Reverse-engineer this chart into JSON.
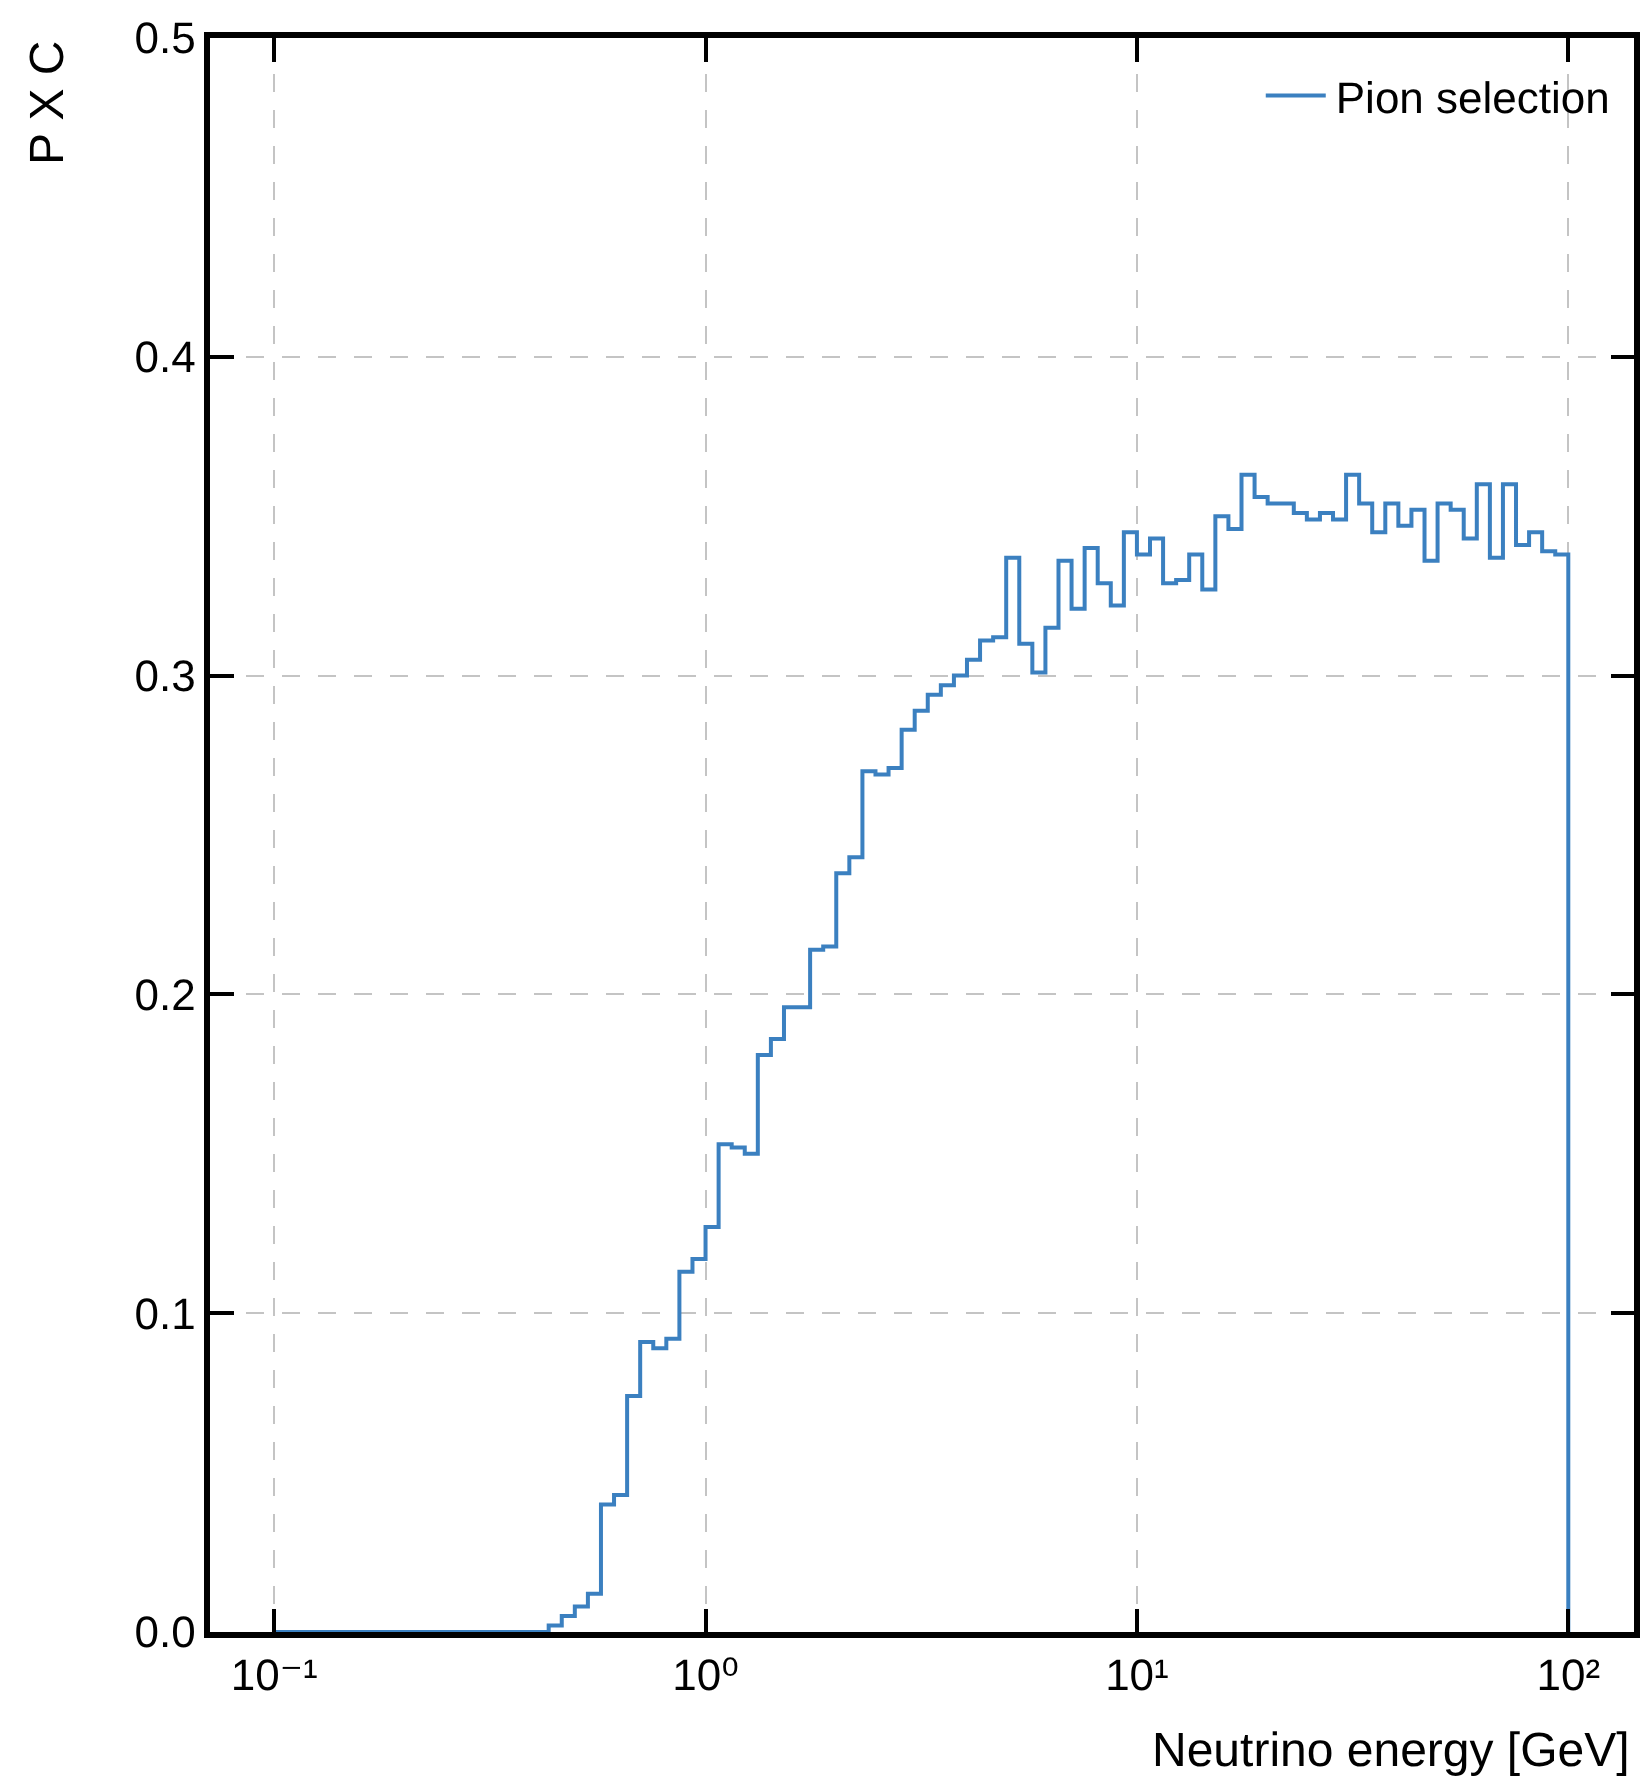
{
  "chart_data": {
    "type": "histogram",
    "xlabel": "Neutrino energy [GeV]",
    "ylabel": "P X C",
    "bins": [
      0.1,
      0.10723,
      0.11498,
      0.12328,
      0.13219,
      0.14174,
      0.15199,
      0.16297,
      0.17475,
      0.18738,
      0.20092,
      0.21544,
      0.23102,
      0.24771,
      0.26561,
      0.28481,
      0.30539,
      0.32745,
      0.35112,
      0.3765,
      0.4037,
      0.43287,
      0.46416,
      0.4977,
      0.53367,
      0.57224,
      0.61359,
      0.65793,
      0.70547,
      0.75647,
      0.81113,
      0.86975,
      0.93261,
      1,
      1.0723,
      1.1498,
      1.2328,
      1.3219,
      1.4174,
      1.5199,
      1.6297,
      1.7475,
      1.8738,
      2.0092,
      2.1544,
      2.3102,
      2.4771,
      2.6561,
      2.8481,
      3.0539,
      3.2745,
      3.5112,
      3.765,
      4.037,
      4.3287,
      4.6416,
      4.977,
      5.3367,
      5.7224,
      6.1359,
      6.5793,
      7.0547,
      7.5647,
      8.1113,
      8.6975,
      9.3261,
      10,
      10.723,
      11.498,
      12.328,
      13.219,
      14.174,
      15.199,
      16.297,
      17.475,
      18.738,
      20.092,
      21.544,
      23.102,
      24.771,
      26.561,
      28.481,
      30.539,
      32.745,
      35.112,
      37.65,
      40.37,
      43.287,
      46.416,
      49.77,
      53.367,
      57.224,
      61.359,
      65.793,
      70.547,
      75.647,
      81.113,
      86.975,
      93.261,
      100
    ],
    "series": [
      {
        "name": "Pion selection",
        "color": "#3b80c0",
        "values": [
          0,
          0,
          0,
          0,
          0,
          0,
          0,
          0,
          0,
          0,
          0,
          0,
          0,
          0,
          0,
          0,
          0,
          0,
          0,
          0,
          0,
          0.002,
          0.005,
          0.008,
          0.012,
          0.04,
          0.043,
          0.074,
          0.091,
          0.089,
          0.092,
          0.113,
          0.117,
          0.127,
          0.153,
          0.152,
          0.15,
          0.181,
          0.186,
          0.196,
          0.196,
          0.214,
          0.215,
          0.238,
          0.243,
          0.27,
          0.269,
          0.271,
          0.283,
          0.289,
          0.294,
          0.297,
          0.3,
          0.305,
          0.311,
          0.312,
          0.337,
          0.31,
          0.301,
          0.315,
          0.336,
          0.321,
          0.34,
          0.329,
          0.322,
          0.345,
          0.338,
          0.343,
          0.329,
          0.33,
          0.338,
          0.327,
          0.35,
          0.346,
          0.363,
          0.356,
          0.354,
          0.354,
          0.351,
          0.349,
          0.351,
          0.349,
          0.363,
          0.354,
          0.345,
          0.354,
          0.347,
          0.352,
          0.336,
          0.354,
          0.352,
          0.343,
          0.36,
          0.337,
          0.36,
          0.341,
          0.345,
          0.339,
          0.338
        ]
      }
    ],
    "log": "x",
    "xlim": [
      0.071,
      142
    ],
    "ylim": [
      0,
      0.5
    ],
    "xticks": [
      {
        "value": 0.1,
        "label": "10⁻¹"
      },
      {
        "value": 1,
        "label": "10⁰"
      },
      {
        "value": 10,
        "label": "10¹"
      },
      {
        "value": 100,
        "label": "10²"
      }
    ],
    "yticks": [
      {
        "value": 0,
        "label": "0.0"
      },
      0.1,
      0.2,
      0.3,
      0.4,
      0.5
    ],
    "grid": true,
    "legend": "top right"
  }
}
